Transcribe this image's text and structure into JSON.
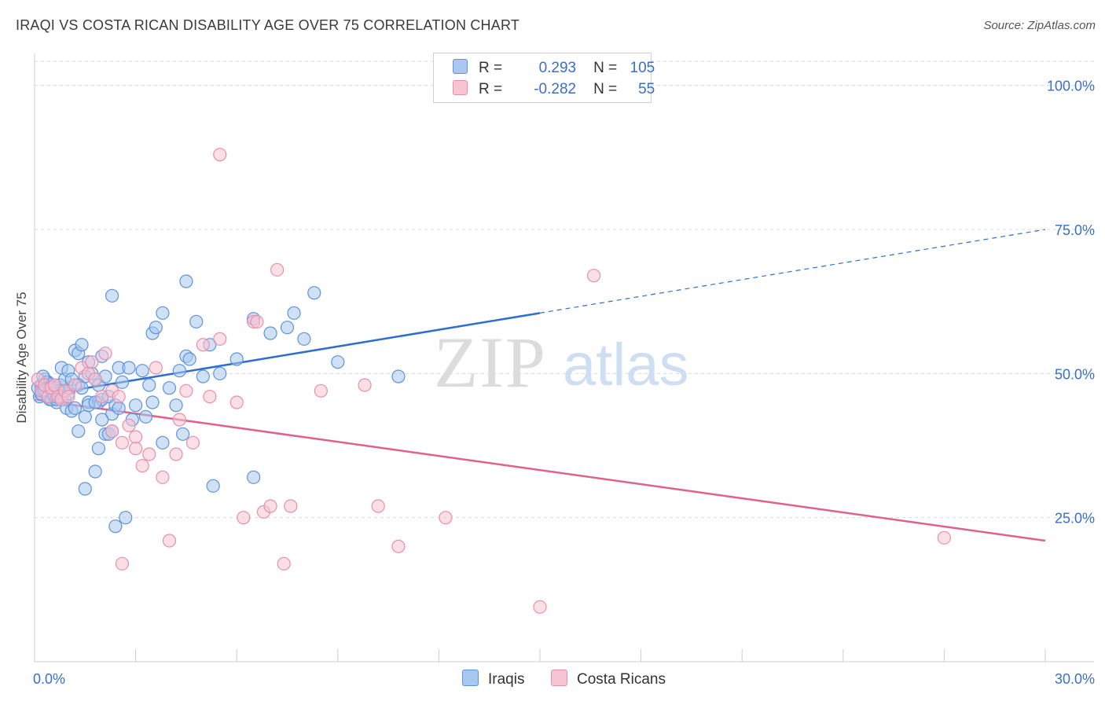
{
  "title": "IRAQI VS COSTA RICAN DISABILITY AGE OVER 75 CORRELATION CHART",
  "source": "Source: ZipAtlas.com",
  "watermark": {
    "zip": "ZIP",
    "atlas": "atlas"
  },
  "colors": {
    "iraqis_fill": "#a9c8ef",
    "iraqis_stroke": "#5b93dc",
    "iraqis_line": "#2d6fd0",
    "costa_fill": "#f7c4d4",
    "costa_stroke": "#e98eaa",
    "costa_line": "#e0628c",
    "axis_label": "#3a6fc8",
    "grid": "#d9d9d9"
  },
  "legend": {
    "rows": [
      {
        "r_label": "R =",
        "r_value": "0.293",
        "n_label": "N =",
        "n_value": "105"
      },
      {
        "r_label": "R =",
        "r_value": "-0.282",
        "n_label": "N =",
        "n_value": "55"
      }
    ]
  },
  "chart_data": {
    "type": "scatter",
    "title": "IRAQI VS COSTA RICAN DISABILITY AGE OVER 75 CORRELATION CHART",
    "xlabel": "",
    "ylabel": "Disability Age Over 75",
    "xlim": [
      0,
      30
    ],
    "ylim": [
      0,
      105
    ],
    "x_tick_labels": [
      "0.0%",
      "30.0%"
    ],
    "y_ticks": [
      25,
      50,
      75,
      100
    ],
    "y_tick_labels": [
      "25.0%",
      "50.0%",
      "75.0%",
      "100.0%"
    ],
    "grid": true,
    "series": [
      {
        "name": "Iraqis",
        "r": 0.293,
        "n": 105,
        "trend": {
          "x0": 0,
          "y0": 46,
          "x1": 30,
          "y1": 75,
          "solid_until_x": 15
        },
        "points": [
          [
            0.1,
            47.5
          ],
          [
            0.15,
            46
          ],
          [
            0.2,
            48
          ],
          [
            0.25,
            47
          ],
          [
            0.3,
            49
          ],
          [
            0.35,
            46.5
          ],
          [
            0.4,
            48.5
          ],
          [
            0.45,
            45.5
          ],
          [
            0.5,
            47
          ],
          [
            0.55,
            46
          ],
          [
            0.6,
            47.5
          ],
          [
            0.65,
            45
          ],
          [
            0.7,
            46.5
          ],
          [
            0.75,
            48
          ],
          [
            0.8,
            46
          ],
          [
            0.85,
            47
          ],
          [
            0.9,
            45.5
          ],
          [
            0.95,
            44
          ],
          [
            1.0,
            46.5
          ],
          [
            1.05,
            47.5
          ],
          [
            0.2,
            46.5
          ],
          [
            0.3,
            47
          ],
          [
            0.4,
            46
          ],
          [
            0.5,
            45.5
          ],
          [
            0.6,
            46
          ],
          [
            0.7,
            47
          ],
          [
            0.35,
            48.5
          ],
          [
            0.45,
            47.5
          ],
          [
            0.55,
            46.5
          ],
          [
            0.65,
            45.5
          ],
          [
            0.8,
            51
          ],
          [
            0.9,
            49
          ],
          [
            1.0,
            50.5
          ],
          [
            1.1,
            49
          ],
          [
            1.2,
            54
          ],
          [
            1.3,
            53.5
          ],
          [
            1.4,
            55
          ],
          [
            1.5,
            49.5
          ],
          [
            1.6,
            52
          ],
          [
            1.7,
            50
          ],
          [
            1.1,
            43.5
          ],
          [
            1.2,
            44
          ],
          [
            1.3,
            48
          ],
          [
            1.4,
            47.5
          ],
          [
            1.5,
            42.5
          ],
          [
            1.6,
            45
          ],
          [
            1.8,
            49
          ],
          [
            1.9,
            48
          ],
          [
            2.0,
            53
          ],
          [
            2.1,
            49.5
          ],
          [
            1.9,
            45
          ],
          [
            2.0,
            45.5
          ],
          [
            2.2,
            46
          ],
          [
            2.3,
            43
          ],
          [
            2.4,
            44.5
          ],
          [
            2.5,
            51
          ],
          [
            2.6,
            48.5
          ],
          [
            2.8,
            51
          ],
          [
            2.9,
            42
          ],
          [
            3.0,
            44.5
          ],
          [
            3.2,
            50.5
          ],
          [
            3.3,
            42.5
          ],
          [
            3.4,
            48
          ],
          [
            3.5,
            57
          ],
          [
            3.6,
            58
          ],
          [
            3.8,
            60.5
          ],
          [
            4.0,
            47.5
          ],
          [
            4.2,
            44.5
          ],
          [
            4.3,
            50.5
          ],
          [
            4.5,
            53
          ],
          [
            4.6,
            52.5
          ],
          [
            4.8,
            59
          ],
          [
            5.0,
            49.5
          ],
          [
            5.2,
            55
          ],
          [
            5.5,
            50
          ],
          [
            6.0,
            52.5
          ],
          [
            6.5,
            59.5
          ],
          [
            7.0,
            57
          ],
          [
            7.5,
            58
          ],
          [
            7.7,
            60.5
          ],
          [
            8.0,
            56
          ],
          [
            8.3,
            64
          ],
          [
            9.0,
            52
          ],
          [
            10.8,
            49.5
          ],
          [
            1.3,
            40
          ],
          [
            1.5,
            30
          ],
          [
            1.8,
            33
          ],
          [
            1.9,
            37
          ],
          [
            2.0,
            42
          ],
          [
            2.1,
            39.5
          ],
          [
            2.2,
            39.5
          ],
          [
            2.3,
            40
          ],
          [
            2.4,
            23.5
          ],
          [
            2.5,
            44
          ],
          [
            3.8,
            38
          ],
          [
            4.4,
            39.5
          ],
          [
            5.3,
            30.5
          ],
          [
            6.5,
            32
          ],
          [
            2.3,
            63.5
          ],
          [
            4.5,
            66
          ],
          [
            1.6,
            44.5
          ],
          [
            1.8,
            45
          ],
          [
            2.7,
            25
          ],
          [
            3.5,
            45
          ],
          [
            0.25,
            49.5
          ]
        ]
      },
      {
        "name": "Costa Ricans",
        "r": -0.282,
        "n": 55,
        "trend": {
          "x0": 0,
          "y0": 45.5,
          "x1": 30,
          "y1": 21
        },
        "points": [
          [
            0.1,
            49
          ],
          [
            0.2,
            47
          ],
          [
            0.3,
            48
          ],
          [
            0.4,
            46
          ],
          [
            0.5,
            47.5
          ],
          [
            0.6,
            48
          ],
          [
            0.7,
            46
          ],
          [
            0.8,
            45.5
          ],
          [
            0.9,
            47
          ],
          [
            1.0,
            46
          ],
          [
            1.2,
            48
          ],
          [
            1.4,
            51
          ],
          [
            1.6,
            50
          ],
          [
            1.7,
            52
          ],
          [
            1.8,
            49
          ],
          [
            2.0,
            46
          ],
          [
            2.1,
            53.5
          ],
          [
            2.3,
            47
          ],
          [
            2.5,
            46
          ],
          [
            2.8,
            41
          ],
          [
            3.0,
            39
          ],
          [
            3.2,
            34
          ],
          [
            3.4,
            36
          ],
          [
            3.6,
            51
          ],
          [
            3.8,
            32
          ],
          [
            4.0,
            21
          ],
          [
            4.3,
            42
          ],
          [
            4.5,
            47
          ],
          [
            4.7,
            38
          ],
          [
            5.0,
            55
          ],
          [
            5.2,
            46
          ],
          [
            5.5,
            56
          ],
          [
            6.0,
            45
          ],
          [
            6.2,
            25
          ],
          [
            6.5,
            59
          ],
          [
            6.6,
            59
          ],
          [
            6.8,
            26
          ],
          [
            7.0,
            27
          ],
          [
            7.2,
            68
          ],
          [
            7.4,
            17
          ],
          [
            7.6,
            27
          ],
          [
            8.5,
            47
          ],
          [
            9.8,
            48
          ],
          [
            10.2,
            27
          ],
          [
            10.8,
            20
          ],
          [
            12.2,
            25
          ],
          [
            15.0,
            9.5
          ],
          [
            16.6,
            67
          ],
          [
            27.0,
            21.5
          ],
          [
            2.3,
            40
          ],
          [
            2.6,
            17
          ],
          [
            4.2,
            36
          ],
          [
            3.0,
            37
          ],
          [
            2.6,
            38
          ],
          [
            5.5,
            88
          ]
        ]
      }
    ]
  },
  "bottom_legend": [
    {
      "label": "Iraqis"
    },
    {
      "label": "Costa Ricans"
    }
  ]
}
